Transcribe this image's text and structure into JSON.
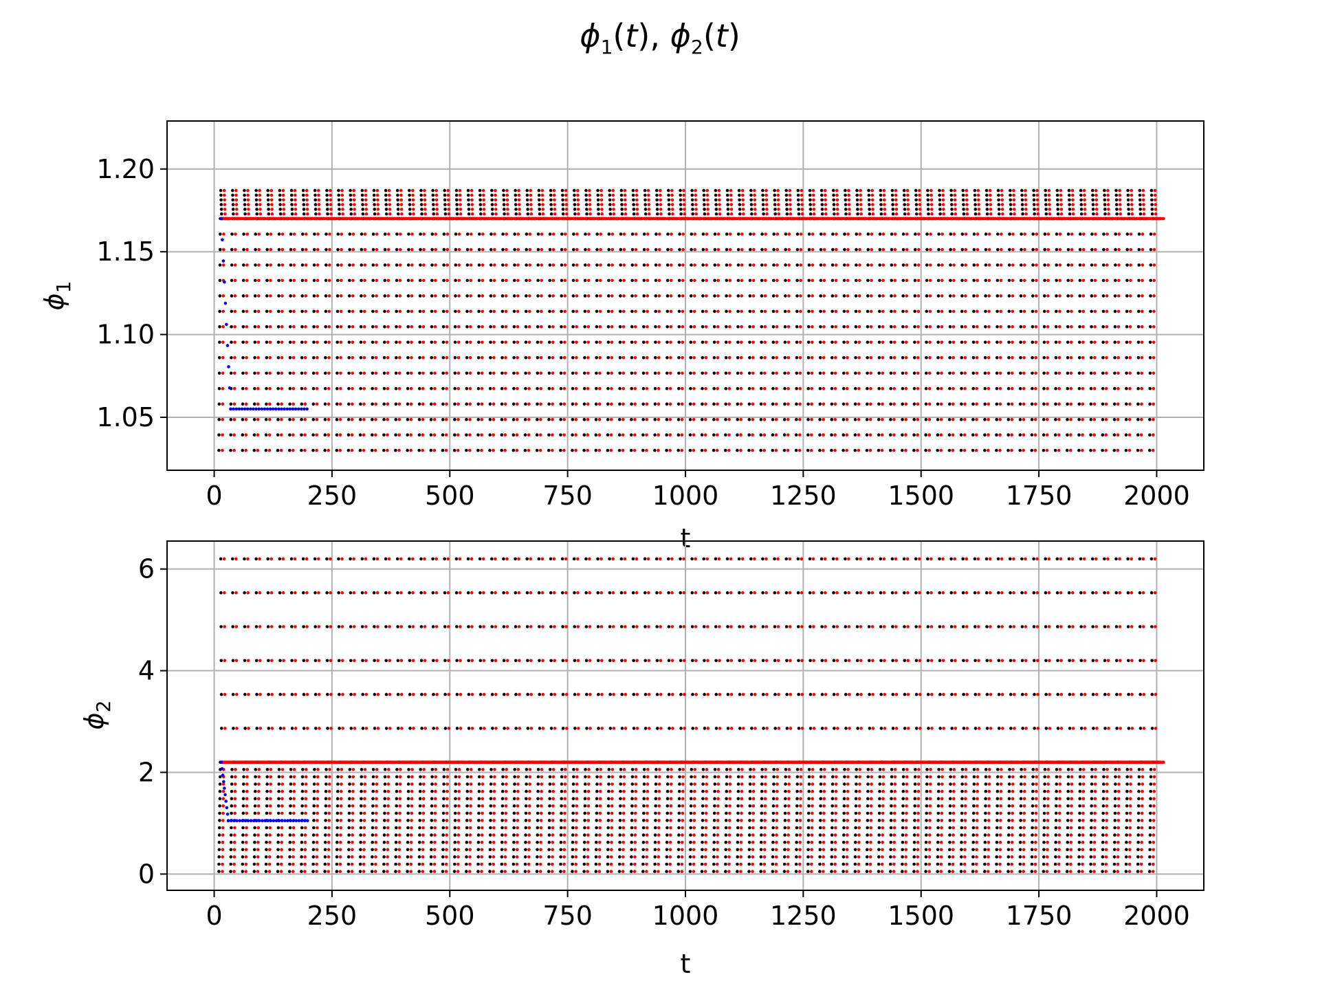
{
  "figure": {
    "title_parts": [
      "ϕ",
      "1",
      "(",
      "t",
      "), ",
      "ϕ",
      "2",
      "(",
      "t",
      ")"
    ]
  },
  "chart_data": [
    {
      "type": "scatter",
      "title": "",
      "xlabel": "t",
      "ylabel_symbol": "ϕ",
      "ylabel_sub": "1",
      "xlim": [
        -100,
        2100
      ],
      "ylim": [
        1.018,
        1.229
      ],
      "xticks": [
        0,
        250,
        500,
        750,
        1000,
        1250,
        1500,
        1750,
        2000
      ],
      "xtick_labels": [
        "0",
        "250",
        "500",
        "750",
        "1000",
        "1250",
        "1500",
        "1750",
        "2000"
      ],
      "yticks": [
        1.05,
        1.1,
        1.15,
        1.2
      ],
      "ytick_labels": [
        "1.05",
        "1.10",
        "1.15",
        "1.20"
      ],
      "grid": true,
      "series": [
        {
          "color": "#000000",
          "pattern": "periodic cycles from t≈0 to t≈2000, baseline ≈1.17, peaks ≈1.187, troughs ≈1.03, period ≈25",
          "baseline": 1.17,
          "peak": 1.187,
          "trough": 1.03,
          "period": 25,
          "x_start": 10,
          "x_end": 1995,
          "phase": 0
        },
        {
          "color": "#ff0000",
          "pattern": "same cycle, phase shifted",
          "baseline": 1.17,
          "peak": 1.187,
          "trough": 1.03,
          "period": 25,
          "x_start": 15,
          "x_end": 1992,
          "phase": 8
        },
        {
          "color": "#0000ff",
          "pattern": "transient dropping from ≈1.17 to ≈1.055 near t≈25, then flat to t≈200",
          "start_value": 1.17,
          "end_value": 1.055,
          "drop_x": [
            15,
            35
          ],
          "x_end": 200
        }
      ]
    },
    {
      "type": "scatter",
      "title": "",
      "xlabel": "t",
      "ylabel_symbol": "ϕ",
      "ylabel_sub": "2",
      "xlim": [
        -100,
        2100
      ],
      "ylim": [
        -0.32,
        6.55
      ],
      "xticks": [
        0,
        250,
        500,
        750,
        1000,
        1250,
        1500,
        1750,
        2000
      ],
      "xtick_labels": [
        "0",
        "250",
        "500",
        "750",
        "1000",
        "1250",
        "1500",
        "1750",
        "2000"
      ],
      "yticks": [
        0,
        2,
        4,
        6
      ],
      "ytick_labels": [
        "0",
        "2",
        "4",
        "6"
      ],
      "grid": true,
      "series": [
        {
          "color": "#000000",
          "pattern": "periodic cycles, baseline ≈2.2, peaks ≈6.2, troughs ≈0.05, period ≈25",
          "baseline": 2.2,
          "peak": 6.2,
          "trough": 0.05,
          "period": 25,
          "x_start": 10,
          "x_end": 1995,
          "phase": 0
        },
        {
          "color": "#ff0000",
          "pattern": "same cycle, phase shifted",
          "baseline": 2.2,
          "peak": 6.2,
          "trough": 0.05,
          "period": 25,
          "x_start": 15,
          "x_end": 1992,
          "phase": 8
        },
        {
          "color": "#0000ff",
          "pattern": "transient dropping from ≈2.2 to ≈1.05 near t≈25, then flat to t≈200",
          "start_value": 2.2,
          "end_value": 1.05,
          "drop_x": [
            15,
            30
          ],
          "x_end": 200
        }
      ]
    }
  ]
}
